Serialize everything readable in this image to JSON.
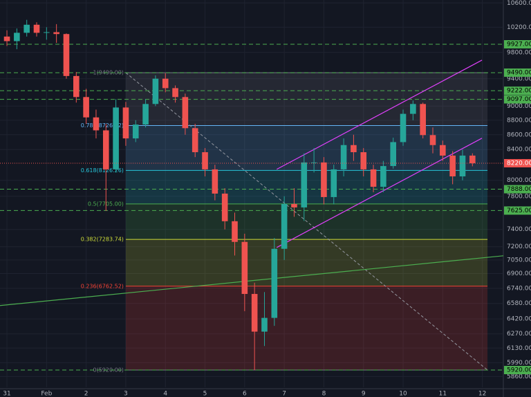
{
  "chart_data": {
    "type": "candlestick",
    "log_scale": true,
    "grid": true,
    "up_color": "#26a69a",
    "down_color": "#ef5350",
    "ylim": [
      5760,
      10650
    ],
    "xlim": [
      -0.175,
      12.53
    ],
    "yticks": [
      {
        "value": 10600,
        "label": "10600.00"
      },
      {
        "value": 10200,
        "label": "10200.00"
      },
      {
        "value": 9800,
        "label": "9800.00"
      },
      {
        "value": 9400,
        "label": "9400.00"
      },
      {
        "value": 9000,
        "label": "9000.00"
      },
      {
        "value": 8800,
        "label": "8800.00"
      },
      {
        "value": 8600,
        "label": "8600.00"
      },
      {
        "value": 8400,
        "label": "8400.00"
      },
      {
        "value": 8000,
        "label": "8000.00"
      },
      {
        "value": 7800,
        "label": "7800.00"
      },
      {
        "value": 7400,
        "label": "7400.00"
      },
      {
        "value": 7200,
        "label": "7200.00"
      },
      {
        "value": 7050,
        "label": "7050.00"
      },
      {
        "value": 6900,
        "label": "6900.00"
      },
      {
        "value": 6740,
        "label": "6740.00"
      },
      {
        "value": 6580,
        "label": "6580.00"
      },
      {
        "value": 6420,
        "label": "6420.00"
      },
      {
        "value": 6270,
        "label": "6270.00"
      },
      {
        "value": 6130,
        "label": "6130.00"
      },
      {
        "value": 5990,
        "label": "5990.00"
      },
      {
        "value": 5860,
        "label": "5860.00"
      }
    ],
    "xticks": [
      {
        "value": 0,
        "label": "31"
      },
      {
        "value": 1,
        "label": "Feb"
      },
      2,
      3,
      4,
      5,
      6,
      7,
      8,
      9,
      10,
      11,
      12
    ],
    "x": [
      0,
      0.25,
      0.5,
      0.75,
      1,
      1.25,
      1.5,
      1.75,
      2,
      2.25,
      2.5,
      2.75,
      3,
      3.25,
      3.5,
      3.75,
      4,
      4.25,
      4.5,
      4.75,
      5,
      5.25,
      5.5,
      5.75,
      6,
      6.25,
      6.5,
      6.75,
      7,
      7.25,
      7.5,
      7.75,
      8,
      8.25,
      8.5,
      8.75,
      9,
      9.25,
      9.5,
      9.75,
      10,
      10.25,
      10.5,
      10.75,
      11,
      11.25,
      11.5,
      11.75
    ],
    "open": [
      10050,
      9977,
      10110,
      10240,
      10110,
      10120,
      10090,
      9440,
      9130,
      8840,
      8660,
      8140,
      8980,
      8550,
      8740,
      9030,
      9400,
      9260,
      9130,
      8690,
      8365,
      8140,
      7833,
      7497,
      7255,
      6680,
      6292,
      6431,
      7176,
      7705,
      7663,
      8230,
      8230,
      7790,
      8140,
      8460,
      8365,
      8140,
      7918,
      8183,
      8500,
      8890,
      9030,
      8595,
      8460,
      8320,
      8050,
      8320
    ],
    "high": [
      10150,
      10180,
      10320,
      10280,
      10200,
      10250,
      10100,
      9500,
      9250,
      8950,
      8750,
      9100,
      9060,
      8800,
      9100,
      9450,
      9480,
      9300,
      9180,
      8750,
      8420,
      8200,
      7900,
      7600,
      7350,
      6800,
      6700,
      7300,
      7800,
      7900,
      8350,
      8420,
      8300,
      8200,
      8550,
      8600,
      8420,
      8200,
      8250,
      8560,
      8950,
      9080,
      9050,
      8700,
      8520,
      8380,
      8400,
      8350
    ],
    "low": [
      9900,
      9850,
      10050,
      10050,
      10000,
      9950,
      9400,
      9050,
      8750,
      8550,
      7620,
      8100,
      8450,
      8500,
      8700,
      9000,
      9200,
      9050,
      8600,
      8300,
      8050,
      7750,
      7400,
      7100,
      6500,
      5920,
      6150,
      6350,
      7050,
      7550,
      7500,
      8100,
      7700,
      7700,
      8050,
      8250,
      8050,
      7850,
      7850,
      8150,
      8450,
      8800,
      8550,
      8350,
      8250,
      7950,
      8000,
      8180
    ],
    "close": [
      9977,
      10110,
      10240,
      10110,
      10120,
      10090,
      9440,
      9130,
      8840,
      8660,
      8140,
      8980,
      8550,
      8740,
      9030,
      9400,
      9260,
      9130,
      8690,
      8365,
      8140,
      7833,
      7497,
      7255,
      6680,
      6292,
      6431,
      7176,
      7705,
      7663,
      8230,
      8230,
      7790,
      8140,
      8460,
      8365,
      8140,
      7918,
      8183,
      8500,
      8890,
      9030,
      8595,
      8460,
      8320,
      8050,
      8320,
      8220
    ],
    "fib": {
      "x": [
        3,
        12.13
      ],
      "levels": [
        {
          "value": 9490,
          "label": "1(9490.00)",
          "color": "#787b86"
        },
        {
          "value": 8726.02,
          "label": "0.786(8726.02)",
          "color": "#64b5f6"
        },
        {
          "value": 8126.26,
          "label": "0.618(8126.26)",
          "color": "#26c6da"
        },
        {
          "value": 7705,
          "label": "0.5(7705.00)",
          "color": "#4caf50"
        },
        {
          "value": 7283.74,
          "label": "0.382(7283.74)",
          "color": "#cddc39"
        },
        {
          "value": 6762.52,
          "label": "0.236(6762.52)",
          "color": "#f44336"
        },
        {
          "value": 5920,
          "label": "0(5920.00)",
          "color": "#787b86"
        }
      ]
    },
    "price_levels": {
      "color": "#4caf50",
      "levels": [
        {
          "value": 9927,
          "label": "9927.00"
        },
        {
          "value": 9490,
          "label": "9490.00"
        },
        {
          "value": 9222,
          "label": "9222.00"
        },
        {
          "value": 9097,
          "label": "9097.00"
        },
        {
          "value": 7888,
          "label": "7888.00"
        },
        {
          "value": 7625,
          "label": "7625.00"
        },
        {
          "value": 5920,
          "label": "5920.00"
        }
      ]
    },
    "last_price": {
      "value": 8220,
      "label": "8220.00",
      "color": "#ef5350"
    },
    "trendlines": [
      {
        "x": [
          -0.175,
          12.53
        ],
        "y": [
          6558,
          7097
        ],
        "color": "#4caf50"
      },
      {
        "x": [
          6.81,
          11.99
        ],
        "y": [
          8141,
          9681
        ],
        "color": "#e040fb"
      },
      {
        "x": [
          6.81,
          11.99
        ],
        "y": [
          7191,
          8553
        ],
        "color": "#e040fb"
      }
    ]
  }
}
